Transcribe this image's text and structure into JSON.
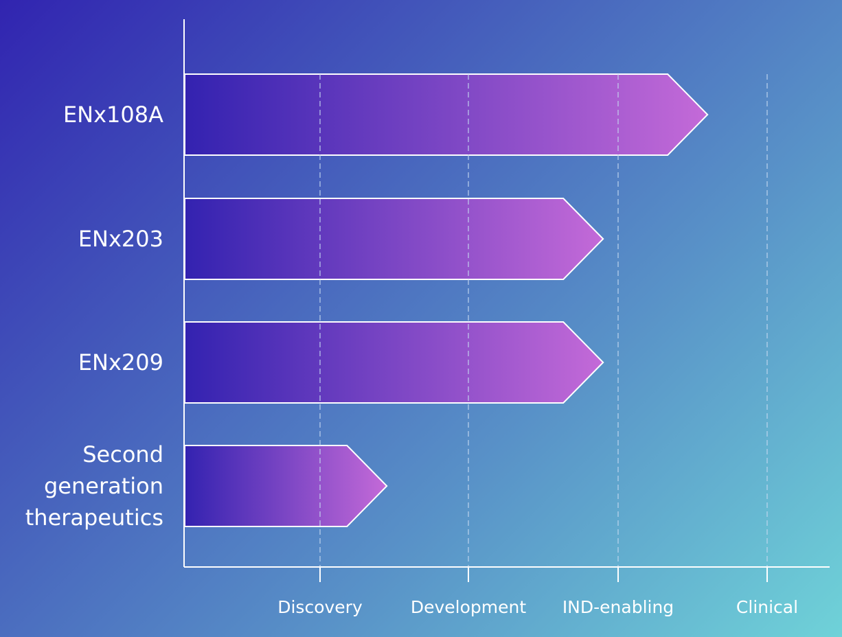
{
  "chart_data": {
    "type": "bar",
    "orientation": "horizontal",
    "title": "",
    "xlabel": "",
    "ylabel": "",
    "stages": [
      "Discovery",
      "Development",
      "IND-enabling",
      "Clinical"
    ],
    "categories": [
      [
        "ENx108A"
      ],
      [
        "ENx203"
      ],
      [
        "ENx209"
      ],
      [
        "Second",
        "generation",
        "therapeutics"
      ]
    ],
    "category_names": [
      "ENx108A",
      "ENx203",
      "ENx209",
      "Second generation therapeutics"
    ],
    "values": [
      3.6,
      2.9,
      2.9,
      1.45
    ],
    "value_unit": "stage index (1 = Discovery ... 4 = Clinical)",
    "xlim": [
      0,
      4.4
    ],
    "grid": "vertical dashed at each stage",
    "legend": "none",
    "colors": {
      "bar_start": "#3322b0",
      "bar_end": "#c46ad8",
      "axis": "#ffffff",
      "grid": "#c4d8f0",
      "bg_start": "#3124b0",
      "bg_end": "#6fd2d8"
    }
  }
}
